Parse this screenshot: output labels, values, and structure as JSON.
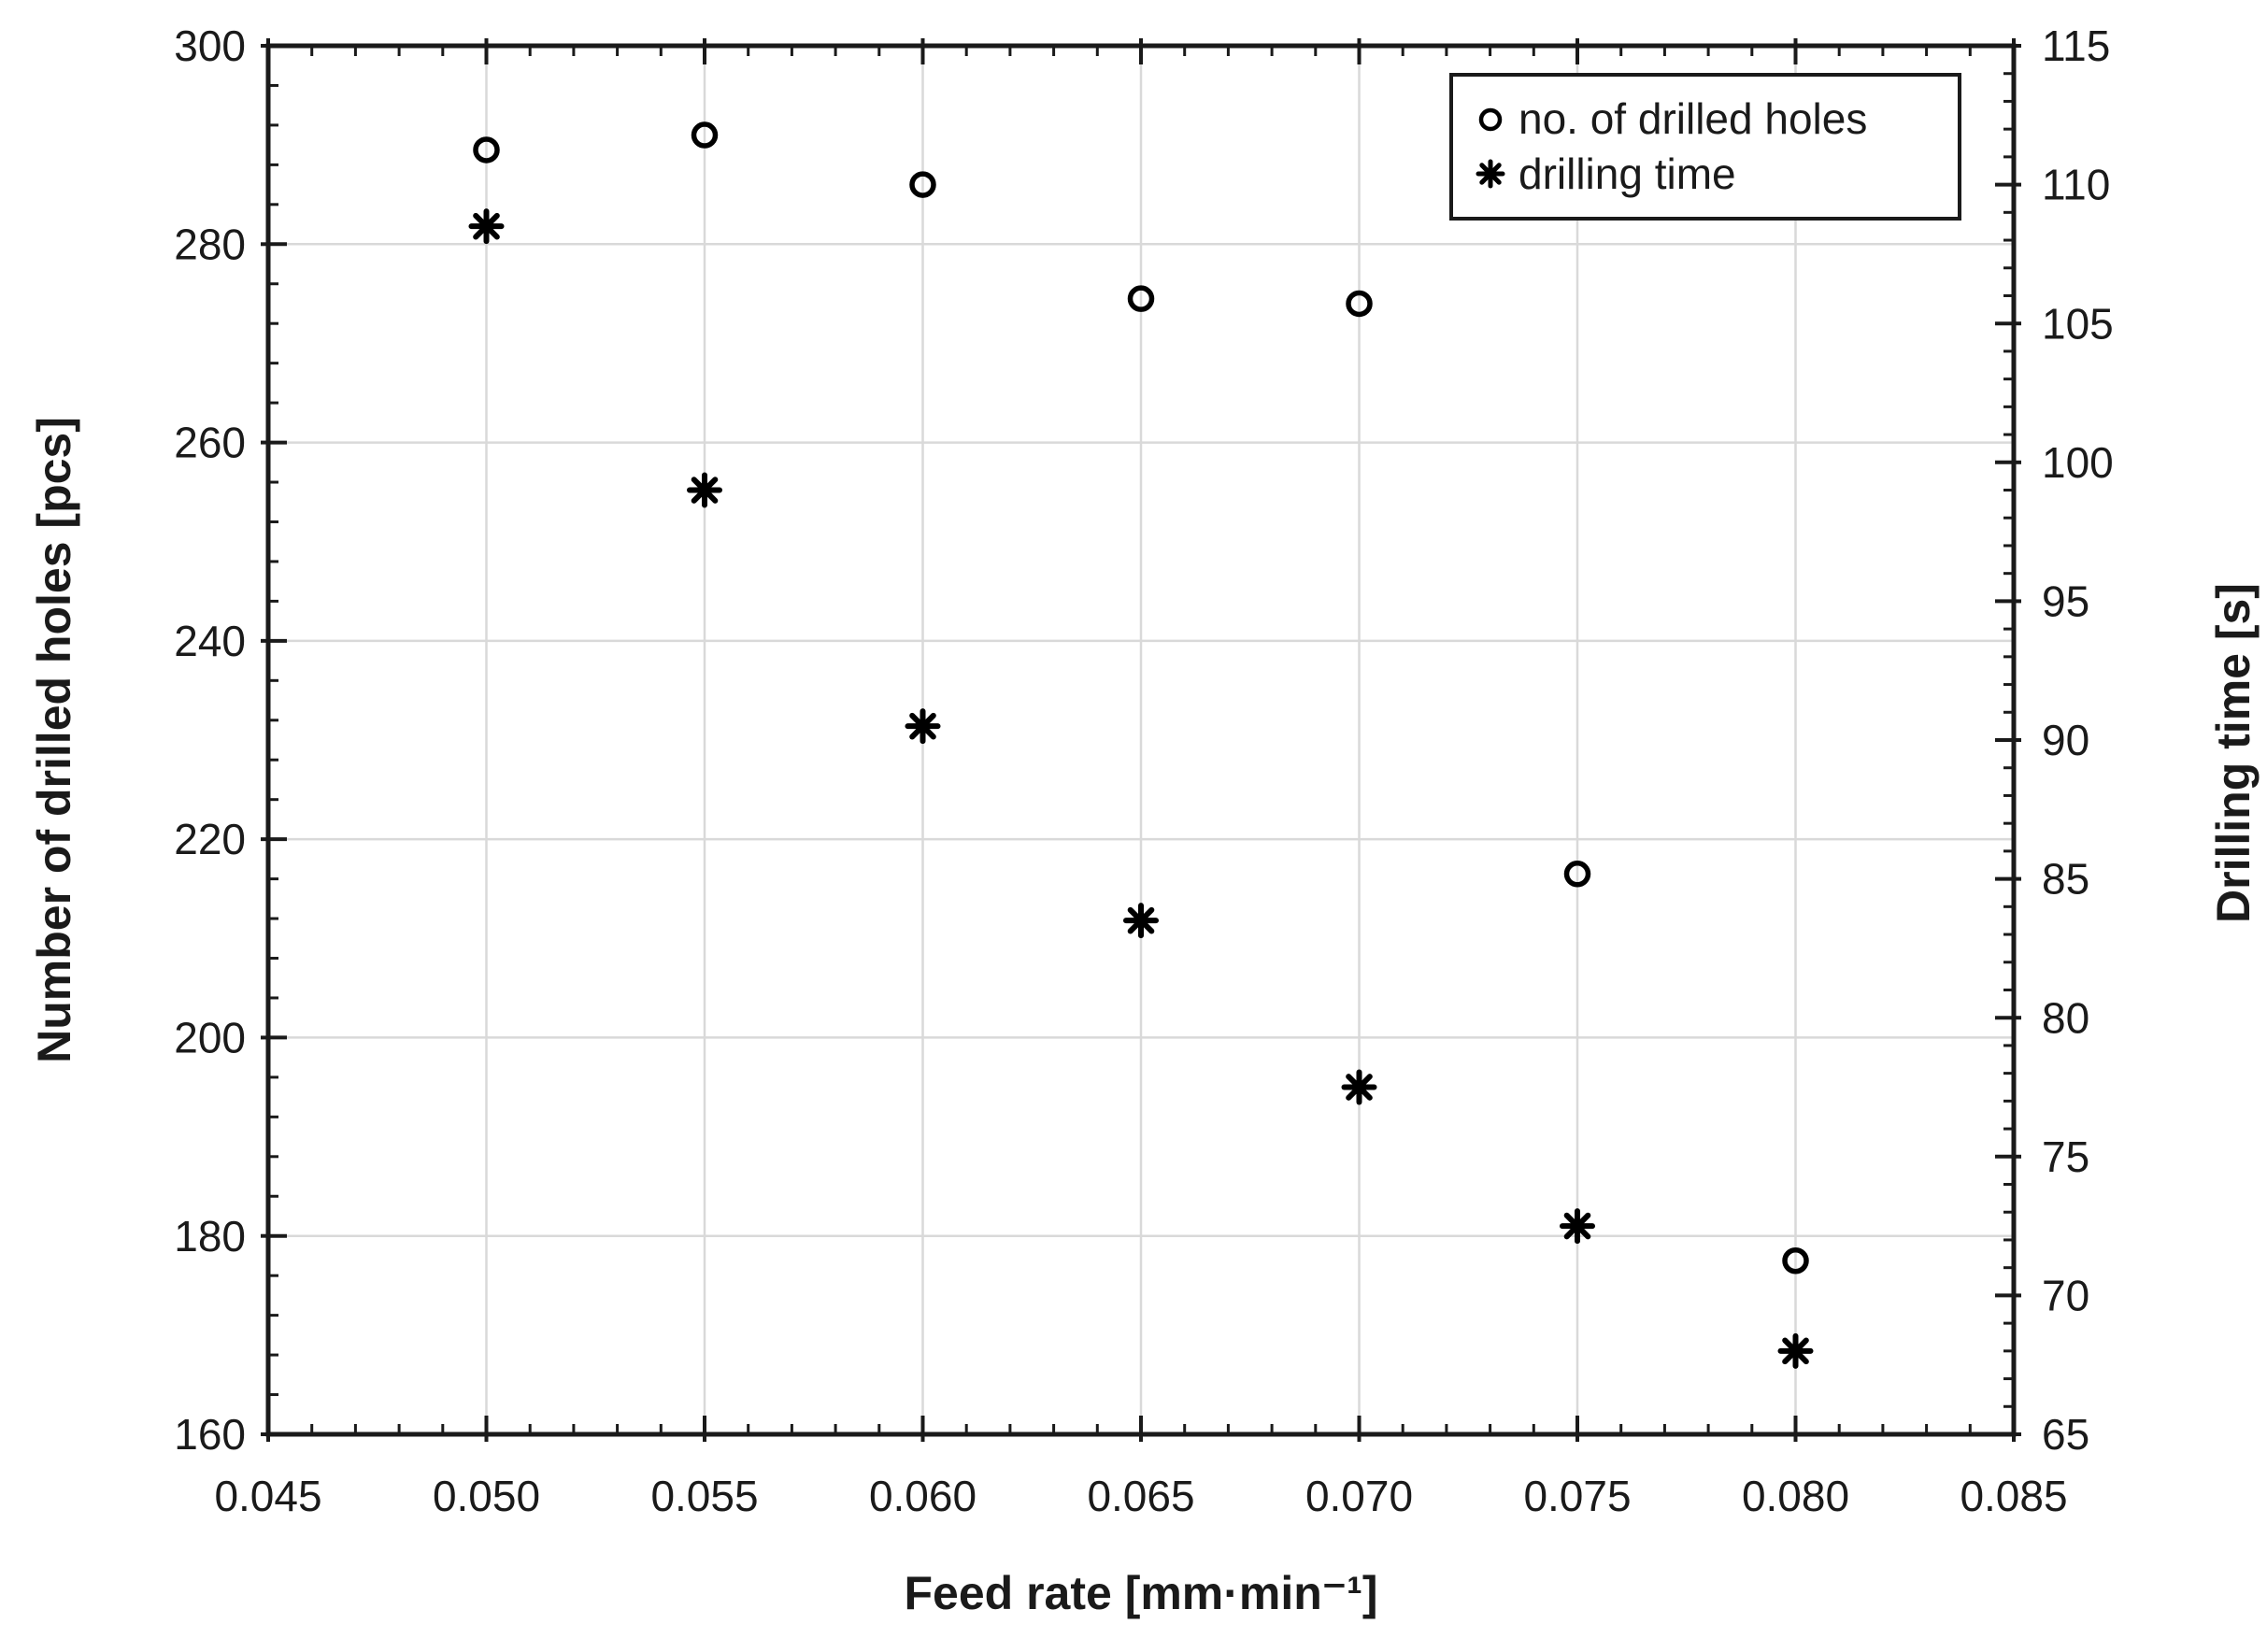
{
  "chart_data": {
    "type": "scatter",
    "x": [
      0.05,
      0.055,
      0.06,
      0.065,
      0.07,
      0.075,
      0.08
    ],
    "series": [
      {
        "name": "no. of drilled holes",
        "marker": "circle",
        "axis": "left",
        "values": [
          289.5,
          291,
          286,
          274.5,
          274,
          216.5,
          177.5
        ]
      },
      {
        "name": "drilling time",
        "marker": "asterisk",
        "axis": "right",
        "values": [
          108.5,
          99,
          90.5,
          83.5,
          77.5,
          72.5,
          68
        ]
      }
    ],
    "xlabel": "Feed rate [mm·min⁻¹]",
    "ylabel_left": "Number of drilled holes [pcs]",
    "ylabel_right": "Drilling time [s]",
    "x_axis": {
      "min": 0.045,
      "max": 0.085,
      "major_step": 0.005,
      "minor_step": 0.001,
      "tick_labels": [
        "0.045",
        "0.050",
        "0.055",
        "0.060",
        "0.065",
        "0.070",
        "0.075",
        "0.080",
        "0.085"
      ]
    },
    "y_left_axis": {
      "min": 160,
      "max": 300,
      "major_step": 20,
      "minor_step": 4,
      "tick_labels": [
        "160",
        "180",
        "200",
        "220",
        "240",
        "260",
        "280",
        "300"
      ]
    },
    "y_right_axis": {
      "min": 65,
      "max": 115,
      "major_step": 5,
      "minor_step": 1,
      "tick_labels": [
        "65",
        "70",
        "75",
        "80",
        "85",
        "90",
        "95",
        "100",
        "105",
        "110",
        "115"
      ]
    },
    "grid": true,
    "legend_position": "top-right",
    "colors": {
      "marker": "#000000",
      "grid": "#d9d9d9",
      "axis": "#1a1a1a",
      "background": "#ffffff",
      "text": "#1a1a1a"
    }
  }
}
